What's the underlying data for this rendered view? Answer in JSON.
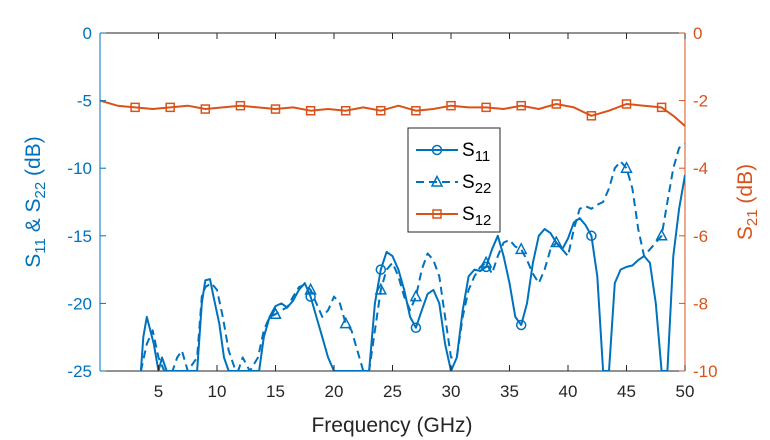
{
  "chart_data": {
    "type": "line",
    "xlabel": "Frequency (GHz)",
    "xlim": [
      0,
      50
    ],
    "xticks": [
      5,
      10,
      15,
      20,
      25,
      30,
      35,
      40,
      45,
      50
    ],
    "y_left": {
      "label_parts": [
        "S",
        "11",
        " & S",
        "22",
        " (dB)"
      ],
      "lim": [
        -25,
        0
      ],
      "ticks": [
        0,
        -5,
        -10,
        -15,
        -20,
        -25
      ],
      "color": "#0072BD"
    },
    "y_right": {
      "label_parts": [
        "S",
        "21",
        " (dB)"
      ],
      "lim": [
        -10,
        0
      ],
      "ticks": [
        0,
        -2,
        -4,
        -6,
        -8,
        -10
      ],
      "color": "#D95319"
    },
    "grid": false,
    "legend_position": "center",
    "series": [
      {
        "name": "S11",
        "name_parts": [
          "S",
          "11"
        ],
        "axis": "left",
        "color": "#0072BD",
        "line_style": "solid",
        "marker": "circle",
        "x": [
          3.5,
          3.7,
          4.0,
          4.3,
          4.6,
          5.0,
          5.3,
          5.7,
          8.3,
          8.7,
          9.0,
          9.4,
          9.7,
          10.2,
          10.6,
          11.0,
          11.5,
          13.6,
          14.0,
          14.5,
          15.0,
          15.5,
          16.0,
          16.5,
          17.0,
          17.5,
          18.0,
          18.5,
          19.0,
          19.5,
          20.0,
          20.5,
          23.0,
          23.5,
          24.0,
          24.5,
          25.0,
          25.5,
          26.0,
          26.5,
          27.0,
          27.5,
          28.0,
          28.5,
          29.0,
          29.5,
          30.0,
          30.5,
          31.0,
          31.5,
          32.0,
          32.5,
          33.0,
          33.5,
          34.0,
          34.5,
          35.0,
          35.5,
          36.0,
          36.5,
          37.0,
          37.5,
          38.0,
          38.5,
          39.0,
          39.5,
          40.0,
          40.5,
          41.0,
          41.5,
          42.0,
          42.5,
          43.0,
          43.5,
          44.0,
          44.5,
          45.0,
          45.5,
          46.0,
          46.5,
          47.0,
          47.5,
          48.0,
          48.5,
          49.0,
          49.5,
          50.0
        ],
        "y": [
          -25,
          -22.5,
          -21.0,
          -22.0,
          -23.0,
          -25,
          -24,
          -25,
          -25,
          -20.0,
          -18.3,
          -18.2,
          -19.5,
          -21.5,
          -24.0,
          -25,
          -25,
          -25,
          -22.5,
          -21.0,
          -20.2,
          -20.0,
          -20.3,
          -19.8,
          -19.0,
          -18.5,
          -19.5,
          -21.0,
          -22.5,
          -24.0,
          -25,
          -25,
          -25,
          -20.0,
          -17.5,
          -16.2,
          -16.5,
          -17.5,
          -19.0,
          -21.0,
          -21.8,
          -20.5,
          -19.3,
          -19.0,
          -20.0,
          -23.0,
          -25,
          -24.0,
          -20.5,
          -18.0,
          -17.5,
          -17.6,
          -17.3,
          -16.0,
          -15.0,
          -16.5,
          -18.5,
          -21.0,
          -21.6,
          -20.0,
          -17.0,
          -15.0,
          -14.5,
          -14.8,
          -15.5,
          -16.0,
          -15.2,
          -14.0,
          -13.7,
          -14.2,
          -15.0,
          -18.0,
          -25,
          -25,
          -18.5,
          -17.5,
          -17.3,
          -17.2,
          -16.8,
          -16.5,
          -17.0,
          -20.0,
          -25,
          -25,
          -16.5,
          -13.0,
          -10.5
        ]
      },
      {
        "name": "S22",
        "name_parts": [
          "S",
          "22"
        ],
        "axis": "left",
        "color": "#0072BD",
        "line_style": "dashed",
        "marker": "triangle",
        "x": [
          3.5,
          4.0,
          4.5,
          5.0,
          5.5,
          6.2,
          6.6,
          7.0,
          7.5,
          8.3,
          8.7,
          9.0,
          9.5,
          10.0,
          10.5,
          11.0,
          11.6,
          11.8,
          12.2,
          12.8,
          13.5,
          14.0,
          14.5,
          15.0,
          15.5,
          16.0,
          16.5,
          17.0,
          17.5,
          18.0,
          18.5,
          19.0,
          19.5,
          20.0,
          20.5,
          21.0,
          21.5,
          22.0,
          22.5,
          23.0,
          23.5,
          24.0,
          24.5,
          25.0,
          25.5,
          26.0,
          26.5,
          27.0,
          27.5,
          28.0,
          28.5,
          29.0,
          29.5,
          30.0,
          30.5,
          31.0,
          31.5,
          32.0,
          32.5,
          33.0,
          33.5,
          34.0,
          34.5,
          35.0,
          35.5,
          36.0,
          36.5,
          37.0,
          37.5,
          38.0,
          38.5,
          39.0,
          39.5,
          40.0,
          40.5,
          41.0,
          41.5,
          42.0,
          42.5,
          43.0,
          43.5,
          44.0,
          44.5,
          45.0,
          45.5,
          46.0,
          46.5,
          47.0,
          47.5,
          48.0,
          48.5,
          49.0,
          49.5,
          50.0
        ],
        "y": [
          -25,
          -23.0,
          -22.0,
          -24.0,
          -25,
          -25,
          -24.0,
          -23.5,
          -25,
          -24.0,
          -19.5,
          -18.8,
          -18.5,
          -19.0,
          -21.0,
          -23.5,
          -25,
          -25,
          -24.0,
          -25,
          -24.0,
          -22.0,
          -21.0,
          -20.8,
          -20.5,
          -20.3,
          -19.5,
          -18.8,
          -18.6,
          -19.0,
          -20.0,
          -21.0,
          -20.5,
          -19.5,
          -20.0,
          -21.5,
          -22.0,
          -23.5,
          -25,
          -25,
          -22.0,
          -19.0,
          -17.5,
          -17.0,
          -18.0,
          -19.5,
          -20.5,
          -19.5,
          -17.5,
          -16.3,
          -16.8,
          -18.0,
          -21.0,
          -24.0,
          -24.0,
          -21.0,
          -19.0,
          -18.0,
          -17.3,
          -17.0,
          -17.8,
          -16.5,
          -15.5,
          -15.3,
          -15.8,
          -16.0,
          -16.8,
          -17.8,
          -18.5,
          -17.5,
          -16.0,
          -15.5,
          -16.0,
          -16.5,
          -14.5,
          -13.0,
          -12.8,
          -13.0,
          -12.7,
          -12.5,
          -11.5,
          -10.0,
          -9.5,
          -10.0,
          -11.5,
          -14.5,
          -16.5,
          -16.0,
          -15.5,
          -15.0,
          -12.5,
          -10.0,
          -8.5,
          -8.2
        ]
      },
      {
        "name": "S12",
        "name_parts": [
          "S",
          "12"
        ],
        "axis": "right",
        "color": "#D95319",
        "line_style": "solid",
        "marker": "square",
        "x": [
          0,
          1.5,
          3,
          4.5,
          6,
          7.5,
          9,
          10.5,
          12,
          13.5,
          15,
          16.5,
          18,
          19.5,
          21,
          22.5,
          24,
          25.5,
          27,
          28.5,
          30,
          31.5,
          33,
          34.5,
          36,
          37.5,
          39,
          40.5,
          42,
          43.5,
          45,
          46.5,
          48,
          49,
          50
        ],
        "y": [
          -2.0,
          -2.15,
          -2.2,
          -2.25,
          -2.2,
          -2.15,
          -2.25,
          -2.2,
          -2.15,
          -2.2,
          -2.25,
          -2.2,
          -2.3,
          -2.25,
          -2.3,
          -2.2,
          -2.3,
          -2.15,
          -2.3,
          -2.25,
          -2.15,
          -2.2,
          -2.2,
          -2.25,
          -2.15,
          -2.25,
          -2.1,
          -2.2,
          -2.45,
          -2.3,
          -2.1,
          -2.15,
          -2.2,
          -2.45,
          -2.75
        ],
        "markers_x": [
          3,
          6,
          9,
          12,
          15,
          18,
          21,
          24,
          27,
          30,
          33,
          36,
          39,
          42,
          45,
          48
        ]
      }
    ],
    "left_marker_x": {
      "S11": [
        18,
        24,
        27,
        33,
        36,
        42
      ],
      "S22": [
        15,
        18,
        21,
        24,
        27,
        33,
        36,
        39,
        45,
        48
      ]
    }
  }
}
